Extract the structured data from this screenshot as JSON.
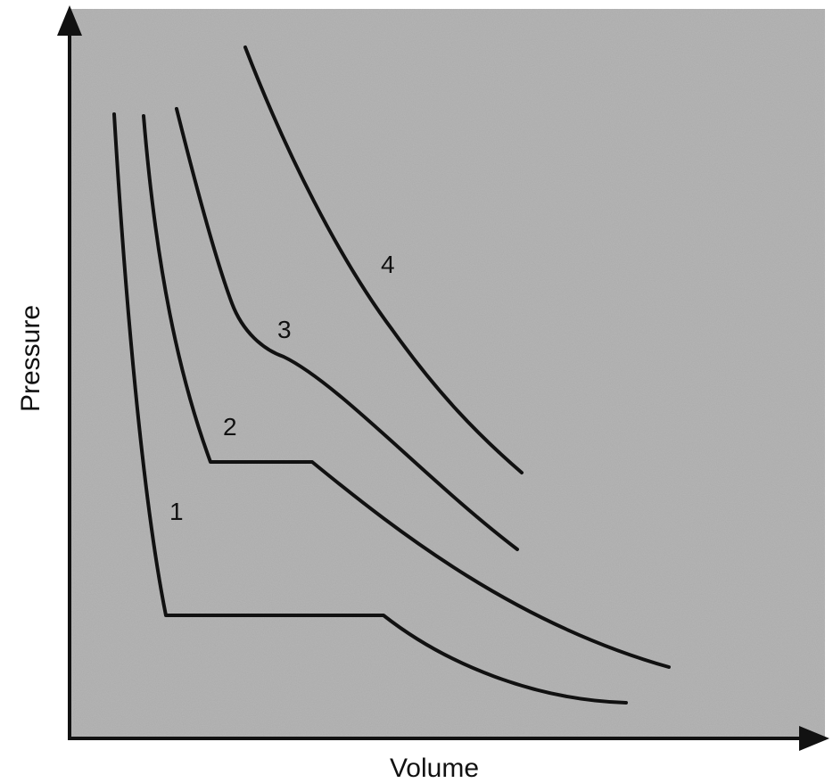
{
  "axes": {
    "x_label": "Volume",
    "y_label": "Pressure"
  },
  "curves": [
    {
      "label": "1"
    },
    {
      "label": "2"
    },
    {
      "label": "3"
    },
    {
      "label": "4"
    }
  ],
  "colors": {
    "plot_background": "#b4b4b4",
    "line": "#111111",
    "page_background": "#ffffff"
  }
}
